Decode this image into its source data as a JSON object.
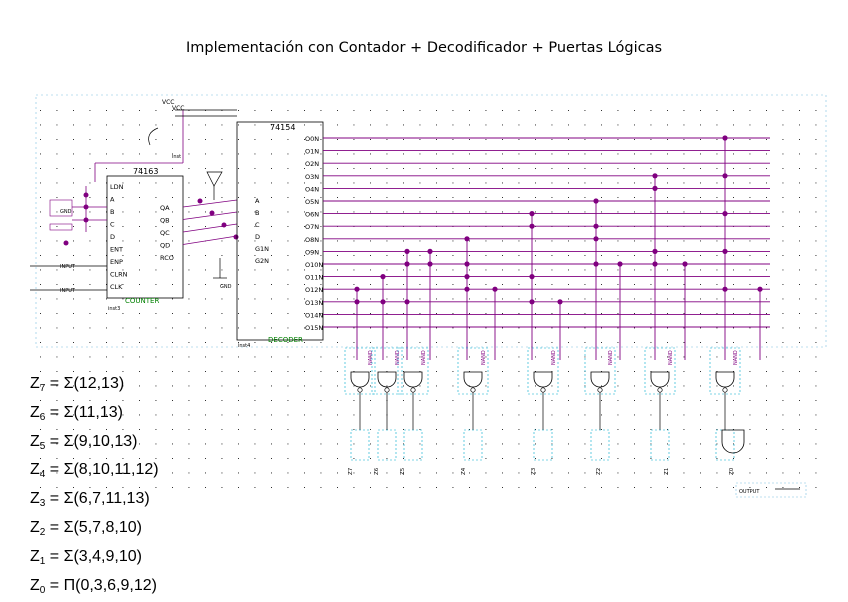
{
  "title": "Implementación con Contador + Decodificador + Puertas Lógicas",
  "colors": {
    "wire": "#800080",
    "dot": "#800080",
    "border": "#0000cc",
    "grid": "#000000",
    "box": "#00aacc",
    "label": "#008000"
  },
  "counter": {
    "part": "74163",
    "pins_left": [
      "LDN",
      "A",
      "B",
      "C",
      "D",
      "ENT",
      "ENP",
      "CLRN",
      "CLK"
    ],
    "pins_right": [
      "QA",
      "QB",
      "QC",
      "QD",
      "RCO"
    ],
    "name": "COUNTER",
    "inst": "inst3",
    "inputs": [
      "GND",
      "GND",
      "INPUT",
      "INPUT"
    ],
    "vcc": "VCC"
  },
  "decoder": {
    "part": "74154",
    "pins_left": [
      "A",
      "B",
      "C",
      "D",
      "G1N",
      "G2N"
    ],
    "outputs": [
      "O0N",
      "O1N",
      "O2N",
      "O3N",
      "O4N",
      "O5N",
      "O6N",
      "O7N",
      "O8N",
      "O9N",
      "O10N",
      "O11N",
      "O12N",
      "O13N",
      "O14N",
      "O15N"
    ],
    "name": "DECODER",
    "inst": "inst4",
    "vcc": "VCC",
    "gnd": "GND",
    "inst_label": "inst"
  },
  "gates": [
    "NAND",
    "NAND",
    "NAND",
    "NAND",
    "NAND",
    "NAND",
    "NAND",
    "NAND",
    "NAND"
  ],
  "outputs": [
    "Z7",
    "Z6",
    "Z5",
    "Z4",
    "Z3",
    "Z2",
    "Z1",
    "Z0"
  ],
  "output_pin": "OUTPUT",
  "equations": [
    {
      "z": "Z",
      "sub": "7",
      "rest": " = Σ(12,13)"
    },
    {
      "z": "Z",
      "sub": "6",
      "rest": " = Σ(11,13)"
    },
    {
      "z": "Z",
      "sub": "5",
      "rest": " = Σ(9,10,13)"
    },
    {
      "z": "Z",
      "sub": "4",
      "rest": " = Σ(8,10,11,12)"
    },
    {
      "z": "Z",
      "sub": "3",
      "rest": " = Σ(6,7,11,13)"
    },
    {
      "z": "Z",
      "sub": "2",
      "rest": " = Σ(5,7,8,10)"
    },
    {
      "z": "Z",
      "sub": "1",
      "rest": " = Σ(3,4,9,10)"
    },
    {
      "z": "Z",
      "sub": "0",
      "rest": " = Π(0,3,6,9,12)"
    }
  ]
}
